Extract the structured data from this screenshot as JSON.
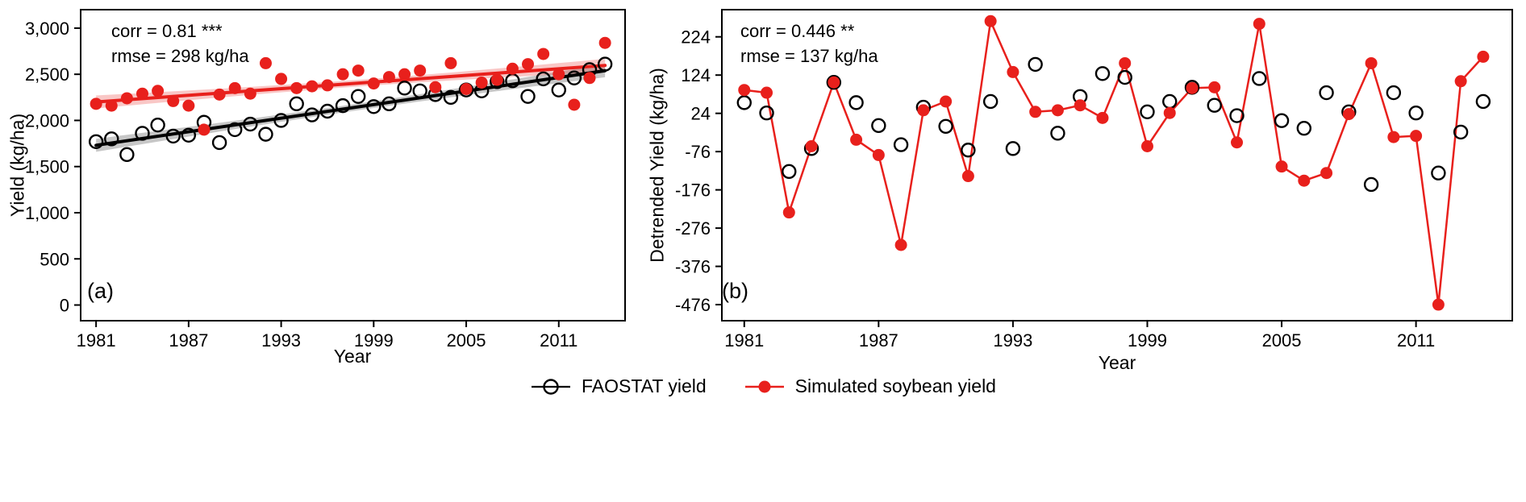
{
  "figure": {
    "background": "#ffffff"
  },
  "colors": {
    "faostat": "#000000",
    "simulated": "#e8201c",
    "faostat_band": "rgba(0,0,0,0.22)",
    "simulated_band": "rgba(232,32,28,0.25)"
  },
  "legend": {
    "items": [
      {
        "label": "FAOSTAT yield",
        "marker": "open-circle-line",
        "color": "#000000"
      },
      {
        "label": "Simulated soybean yield",
        "marker": "filled-circle-line",
        "color": "#e8201c"
      }
    ]
  },
  "chart_data": [
    {
      "type": "scatter",
      "panel_label": "(a)",
      "xlabel": "Year",
      "ylabel": "Yield (kg/ha)",
      "annotation": [
        "corr = 0.81 ***",
        "rmse = 298 kg/ha"
      ],
      "xlim": [
        1980,
        2015.3
      ],
      "ylim": [
        -170,
        3200
      ],
      "xticks": [
        1981,
        1987,
        1993,
        1999,
        2005,
        2011
      ],
      "yticks": [
        0,
        500,
        1000,
        1500,
        2000,
        2500,
        3000
      ],
      "ytick_labels": [
        "0",
        "500",
        "1,000",
        "1,500",
        "2,000",
        "2,500",
        "3,000"
      ],
      "x": [
        1981,
        1982,
        1983,
        1984,
        1985,
        1986,
        1987,
        1988,
        1989,
        1990,
        1991,
        1992,
        1993,
        1994,
        1995,
        1996,
        1997,
        1998,
        1999,
        2000,
        2001,
        2002,
        2003,
        2004,
        2005,
        2006,
        2007,
        2008,
        2009,
        2010,
        2011,
        2012,
        2013,
        2014
      ],
      "series": [
        {
          "name": "FAOSTAT yield",
          "marker": "open",
          "color": "#000000",
          "trend": true,
          "line": false,
          "band_color": "rgba(0,0,0,0.22)",
          "values": [
            1770,
            1800,
            1630,
            1860,
            1950,
            1830,
            1840,
            1980,
            1760,
            1900,
            1960,
            1850,
            2000,
            2180,
            2060,
            2100,
            2160,
            2260,
            2150,
            2180,
            2350,
            2320,
            2280,
            2250,
            2330,
            2320,
            2420,
            2430,
            2260,
            2450,
            2330,
            2460,
            2550,
            2610
          ]
        },
        {
          "name": "Simulated soybean yield",
          "marker": "filled",
          "color": "#e8201c",
          "trend": true,
          "line": false,
          "band_color": "rgba(232,32,28,0.25)",
          "values": [
            2180,
            2160,
            2240,
            2290,
            2320,
            2210,
            2160,
            1900,
            2280,
            2350,
            2290,
            2620,
            2450,
            2350,
            2370,
            2380,
            2500,
            2540,
            2400,
            2470,
            2500,
            2540,
            2360,
            2620,
            2340,
            2410,
            2440,
            2560,
            2610,
            2720,
            2500,
            2170,
            2460,
            2840
          ]
        }
      ]
    },
    {
      "type": "line-scatter",
      "panel_label": "(b)",
      "xlabel": "Year",
      "ylabel": "Detrended Yield (kg/ha)",
      "annotation": [
        "corr = 0.446 **",
        "rmse = 137 kg/ha"
      ],
      "xlim": [
        1980,
        2015.3
      ],
      "ylim": [
        -518,
        295
      ],
      "xticks": [
        1981,
        1987,
        1993,
        1999,
        2005,
        2011
      ],
      "yticks": [
        -476,
        -376,
        -276,
        -176,
        -76,
        24,
        124,
        224
      ],
      "ytick_labels": [
        "-476",
        "-376",
        "-276",
        "-176",
        "-76",
        "24",
        "124",
        "224"
      ],
      "x": [
        1981,
        1982,
        1983,
        1984,
        1985,
        1986,
        1987,
        1988,
        1989,
        1990,
        1991,
        1992,
        1993,
        1994,
        1995,
        1996,
        1997,
        1998,
        1999,
        2000,
        2001,
        2002,
        2003,
        2004,
        2005,
        2006,
        2007,
        2008,
        2009,
        2010,
        2011,
        2012,
        2013,
        2014
      ],
      "series": [
        {
          "name": "FAOSTAT yield",
          "marker": "open",
          "color": "#000000",
          "trend": false,
          "line": false,
          "values": [
            52,
            25,
            -128,
            -68,
            105,
            52,
            -8,
            -58,
            40,
            -10,
            -72,
            55,
            -68,
            152,
            -28,
            68,
            128,
            118,
            28,
            55,
            92,
            45,
            18,
            115,
            5,
            -15,
            78,
            28,
            -162,
            78,
            25,
            -132,
            -25,
            55
          ]
        },
        {
          "name": "Simulated soybean yield",
          "marker": "filled",
          "color": "#e8201c",
          "trend": false,
          "line": true,
          "values": [
            85,
            78,
            -235,
            -62,
            105,
            -45,
            -85,
            -320,
            32,
            55,
            -140,
            265,
            132,
            28,
            32,
            45,
            12,
            155,
            -62,
            25,
            90,
            92,
            -52,
            258,
            -115,
            -152,
            -132,
            22,
            155,
            -38,
            -35,
            -476,
            108,
            172
          ]
        }
      ]
    }
  ]
}
